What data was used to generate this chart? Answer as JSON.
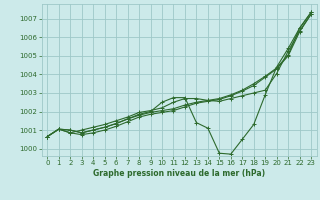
{
  "xlabel": "Graphe pression niveau de la mer (hPa)",
  "bg_color": "#cceaea",
  "grid_color": "#9ec8c8",
  "line_color": "#2d6a2d",
  "ylim": [
    999.6,
    1007.8
  ],
  "xlim": [
    -0.5,
    23.5
  ],
  "yticks": [
    1000,
    1001,
    1002,
    1003,
    1004,
    1005,
    1006,
    1007
  ],
  "xticks": [
    0,
    1,
    2,
    3,
    4,
    5,
    6,
    7,
    8,
    9,
    10,
    11,
    12,
    13,
    14,
    15,
    16,
    17,
    18,
    19,
    20,
    21,
    22,
    23
  ],
  "series": [
    [
      1000.65,
      1001.05,
      1001.0,
      1000.85,
      1001.0,
      1001.15,
      1001.35,
      1001.6,
      1001.8,
      1001.95,
      1002.05,
      1002.15,
      1002.35,
      1002.5,
      1002.6,
      1002.7,
      1002.9,
      1003.15,
      1003.5,
      1003.9,
      1004.35,
      1005.05,
      1006.5,
      1007.35
    ],
    [
      1000.65,
      1001.05,
      1000.85,
      1000.75,
      1000.85,
      1001.0,
      1001.2,
      1001.45,
      1001.7,
      1001.85,
      1001.95,
      1002.05,
      1002.25,
      1002.45,
      1002.55,
      1002.65,
      1002.85,
      1003.1,
      1003.4,
      1003.85,
      1004.3,
      1005.0,
      1006.3,
      1007.25
    ],
    [
      1000.65,
      1001.05,
      1001.0,
      1000.85,
      1001.0,
      1001.15,
      1001.35,
      1001.6,
      1001.85,
      1002.0,
      1002.5,
      1002.75,
      1002.75,
      1001.4,
      1001.1,
      999.75,
      999.7,
      1000.5,
      1001.3,
      1002.9,
      1004.4,
      1005.4,
      1006.5,
      1007.35
    ],
    [
      1000.65,
      1001.05,
      1000.85,
      1001.0,
      1001.15,
      1001.3,
      1001.5,
      1001.7,
      1001.95,
      1002.05,
      1002.2,
      1002.5,
      1002.7,
      1002.7,
      1002.6,
      1002.55,
      1002.7,
      1002.85,
      1003.0,
      1003.15,
      1004.05,
      1005.25,
      1006.35,
      1007.25
    ]
  ]
}
